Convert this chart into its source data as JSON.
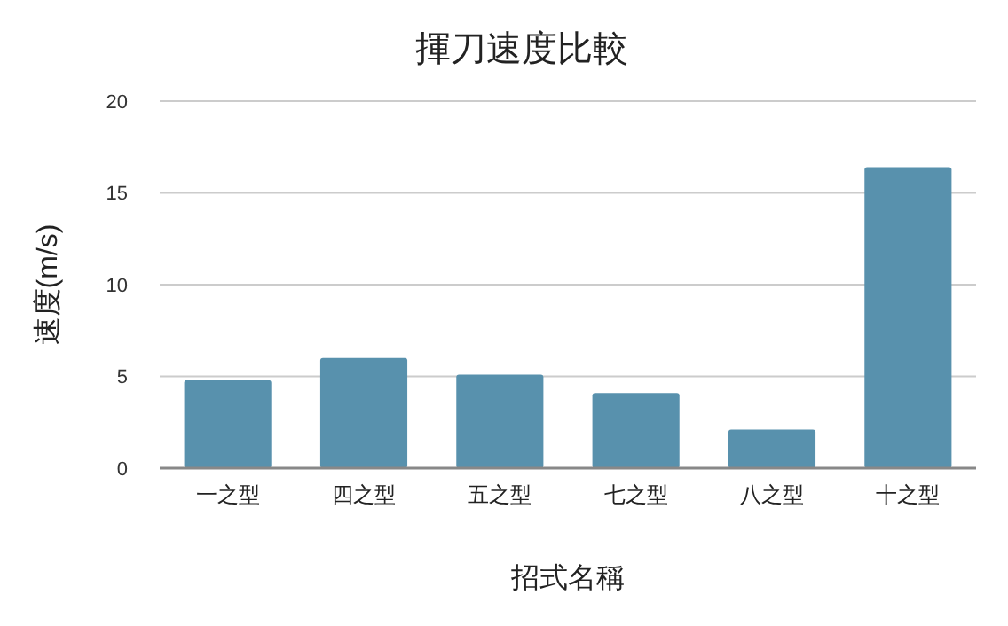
{
  "chart_data": {
    "type": "bar",
    "title": "揮刀速度比較",
    "xlabel": "招式名稱",
    "ylabel": "速度(m/s)",
    "categories": [
      "一之型",
      "四之型",
      "五之型",
      "七之型",
      "八之型",
      "十之型"
    ],
    "values": [
      4.8,
      6.0,
      5.1,
      4.1,
      2.1,
      16.4
    ],
    "color": "#5891ad",
    "ylim": [
      0,
      20
    ],
    "yticks": [
      0,
      5,
      10,
      15,
      20
    ],
    "grid": "y"
  }
}
